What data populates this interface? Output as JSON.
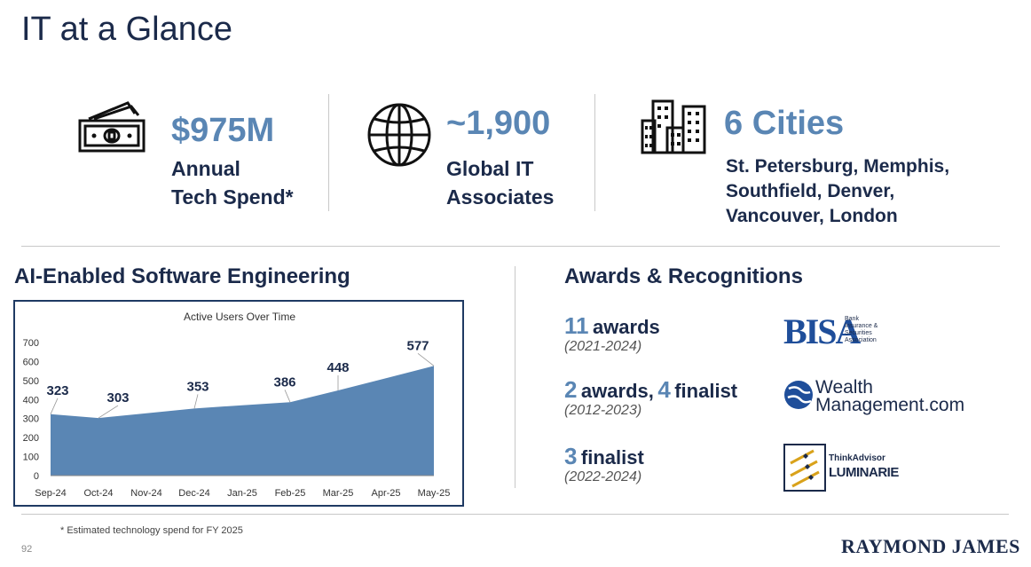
{
  "title": "IT at a Glance",
  "stats": [
    {
      "icon": "money-bill-icon",
      "value": "$975M",
      "line1": "Annual",
      "line2": "Tech Spend*"
    },
    {
      "icon": "globe-icon",
      "value": "~1,900",
      "line1": "Global IT",
      "line2": "Associates"
    },
    {
      "icon": "city-buildings-icon",
      "value": "6 Cities",
      "line1": "St. Petersburg, Memphis,",
      "line2": "Southfield, Denver,",
      "line3": "Vancouver, London"
    }
  ],
  "ai_section": {
    "heading": "AI-Enabled Software Engineering"
  },
  "awards_section": {
    "heading": "Awards & Recognitions",
    "items": [
      {
        "num1": "11",
        "txt1": "awards",
        "num2": "",
        "txt2": "",
        "years": "(2021-2024)",
        "logo": "BISA",
        "logo_sub": [
          "Bank",
          "Insurance &",
          "Securities",
          "Association"
        ]
      },
      {
        "num1": "2",
        "txt1": "awards,",
        "num2": "4",
        "txt2": "finalist",
        "years": "(2012-2023)",
        "logo": "Wealth",
        "logo_line2": "Management.com"
      },
      {
        "num1": "3",
        "txt1": "finalist",
        "num2": "",
        "txt2": "",
        "years": "(2022-2024)",
        "logo": "ThinkAdvisor",
        "logo_line2": "LUMINARIES"
      }
    ]
  },
  "chart_data": {
    "type": "area",
    "title": "Active Users Over Time",
    "categories": [
      "Sep-24",
      "Oct-24",
      "Nov-24",
      "Dec-24",
      "Jan-25",
      "Feb-25",
      "Mar-25",
      "Apr-25",
      "May-25"
    ],
    "values": [
      323,
      303,
      328,
      353,
      370,
      386,
      448,
      512,
      577
    ],
    "data_labels": [
      {
        "index": 0,
        "text": "323"
      },
      {
        "index": 1,
        "text": "303"
      },
      {
        "index": 3,
        "text": "353"
      },
      {
        "index": 5,
        "text": "386"
      },
      {
        "index": 6,
        "text": "448"
      },
      {
        "index": 8,
        "text": "577"
      }
    ],
    "yticks": [
      0,
      100,
      200,
      300,
      400,
      500,
      600,
      700
    ],
    "ylim": [
      0,
      700
    ],
    "xlabel": "",
    "ylabel": "",
    "grid": false,
    "fill_color": "#5a86b4"
  },
  "footnote": "* Estimated technology spend for FY 2025",
  "page_number": "92",
  "brand": "RAYMOND JAMES"
}
